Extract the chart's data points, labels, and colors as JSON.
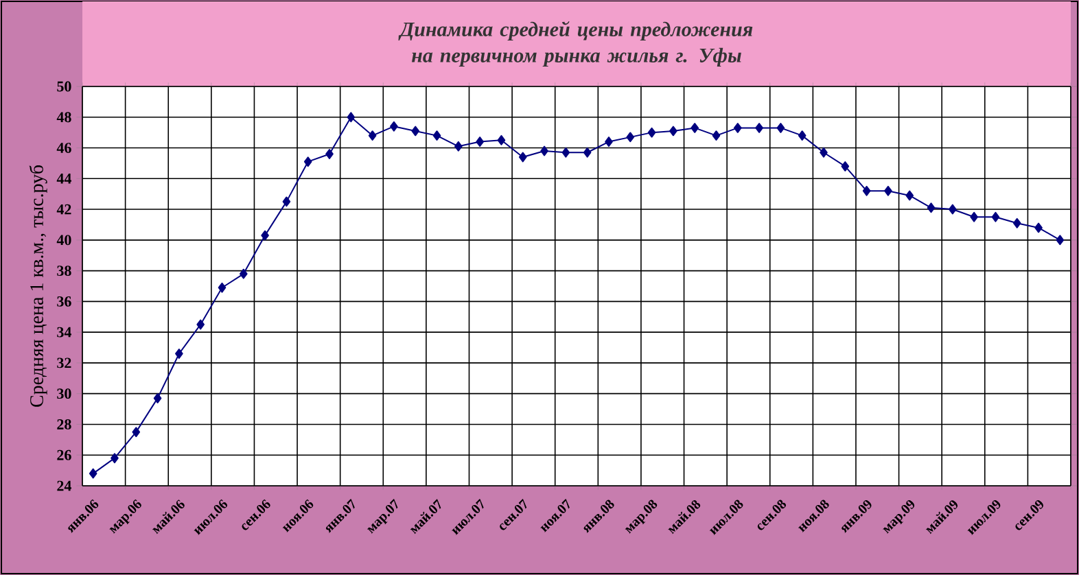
{
  "chart_data": {
    "type": "line",
    "title": "Динамика средней цены предложения на первичном рынка жилья г. Уфы",
    "ylabel": "Средняя цена 1 кв.м., тыс.руб",
    "categories": [
      "янв.06",
      null,
      "мар.06",
      null,
      "май.06",
      null,
      "июл.06",
      null,
      "сен.06",
      null,
      "ноя.06",
      null,
      "янв.07",
      null,
      "мар.07",
      null,
      "май.07",
      null,
      "июл.07",
      null,
      "сен.07",
      null,
      "ноя.07",
      null,
      "янв.08",
      null,
      "мар.08",
      null,
      "май.08",
      null,
      "июл.08",
      null,
      "сен.08",
      null,
      "ноя.08",
      null,
      "янв.09",
      null,
      "мар.09",
      null,
      "май.09",
      null,
      "июл.09",
      null,
      "сен.09",
      null
    ],
    "values": [
      24.8,
      25.8,
      27.5,
      29.7,
      32.6,
      34.5,
      36.9,
      37.8,
      40.3,
      42.5,
      45.1,
      45.6,
      48.0,
      46.8,
      47.4,
      47.1,
      46.8,
      46.1,
      46.4,
      46.5,
      45.4,
      45.8,
      45.7,
      45.7,
      46.4,
      46.7,
      47.0,
      47.1,
      47.3,
      46.8,
      47.3,
      47.3,
      47.3,
      46.8,
      45.7,
      44.8,
      43.2,
      43.2,
      42.9,
      42.1,
      42.0,
      41.5,
      41.5,
      41.1,
      40.8,
      40.0
    ],
    "color": "#000080",
    "marker": "diamond",
    "line_style": "solid",
    "ylim": [
      24,
      50
    ],
    "yticks": [
      24,
      26,
      28,
      30,
      32,
      34,
      36,
      38,
      40,
      42,
      44,
      46,
      48,
      50
    ],
    "grid": true
  }
}
